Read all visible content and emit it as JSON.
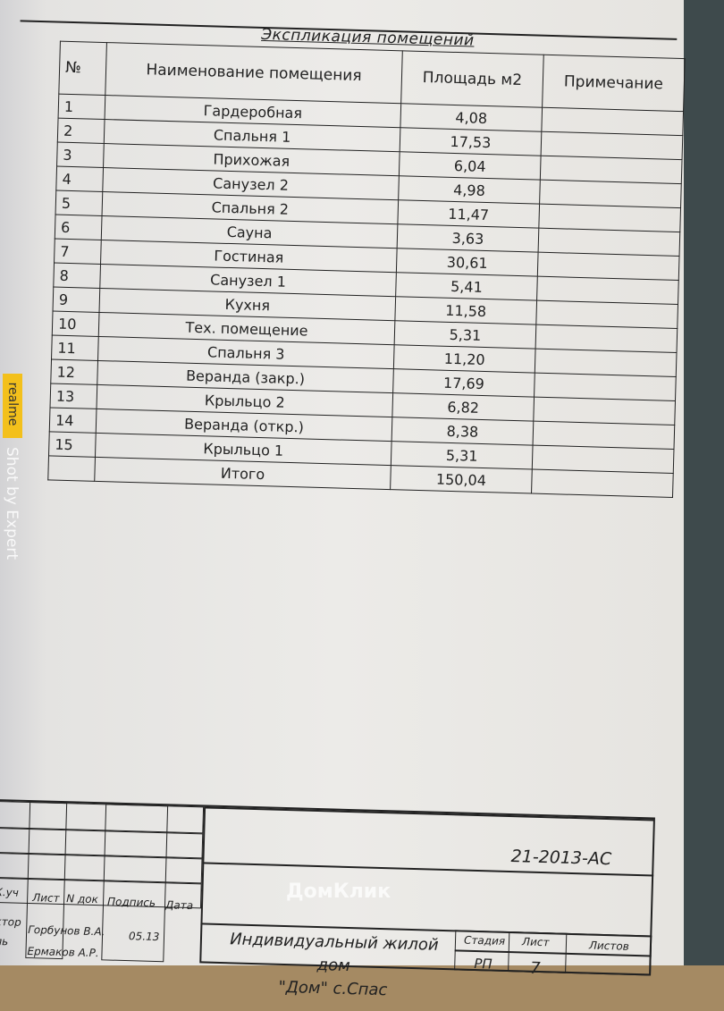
{
  "document": {
    "title": "Экспликация помещений",
    "columns": [
      "№",
      "Наименование помещения",
      "Площадь м2",
      "Примечание"
    ],
    "rows": [
      {
        "n": "1",
        "name": "Гардеробная",
        "area": "4,08",
        "note": ""
      },
      {
        "n": "2",
        "name": "Спальня 1",
        "area": "17,53",
        "note": ""
      },
      {
        "n": "3",
        "name": "Прихожая",
        "area": "6,04",
        "note": ""
      },
      {
        "n": "4",
        "name": "Санузел 2",
        "area": "4,98",
        "note": ""
      },
      {
        "n": "5",
        "name": "Спальня 2",
        "area": "11,47",
        "note": ""
      },
      {
        "n": "6",
        "name": "Сауна",
        "area": "3,63",
        "note": ""
      },
      {
        "n": "7",
        "name": "Гостиная",
        "area": "30,61",
        "note": ""
      },
      {
        "n": "8",
        "name": "Санузел 1",
        "area": "5,41",
        "note": ""
      },
      {
        "n": "9",
        "name": "Кухня",
        "area": "11,58",
        "note": ""
      },
      {
        "n": "10",
        "name": "Тех. помещение",
        "area": "5,31",
        "note": ""
      },
      {
        "n": "11",
        "name": "Спальня 3",
        "area": "11,20",
        "note": ""
      },
      {
        "n": "12",
        "name": "Веранда (закр.)",
        "area": "17,69",
        "note": ""
      },
      {
        "n": "13",
        "name": "Крыльцо 2",
        "area": "6,82",
        "note": ""
      },
      {
        "n": "14",
        "name": "Веранда (откр.)",
        "area": "8,38",
        "note": ""
      },
      {
        "n": "15",
        "name": "Крыльцо 1",
        "area": "5,31",
        "note": ""
      }
    ],
    "total": {
      "label": "Итого",
      "area": "150,04"
    }
  },
  "title_block": {
    "headers": [
      "К.уч",
      "Лист",
      "N док",
      "Подпись",
      "Дата"
    ],
    "code": "21-2013-АС",
    "role1": "Архитектор",
    "role2": "Контроль",
    "person1": "Горбунов В.А.",
    "person2": "Ермаков А.Р.",
    "date1": "05.13",
    "project_line1": "Индивидуальный жилой дом",
    "project_line2": "\"Дом\" с.Спас",
    "stage_label": "Стадия",
    "sheet_label": "Лист",
    "sheets_label": "Листов",
    "stage": "РП",
    "sheet": "7"
  },
  "watermarks": {
    "site": "ДомКлик",
    "brand": "realme",
    "shot": "Shot by Expert"
  }
}
